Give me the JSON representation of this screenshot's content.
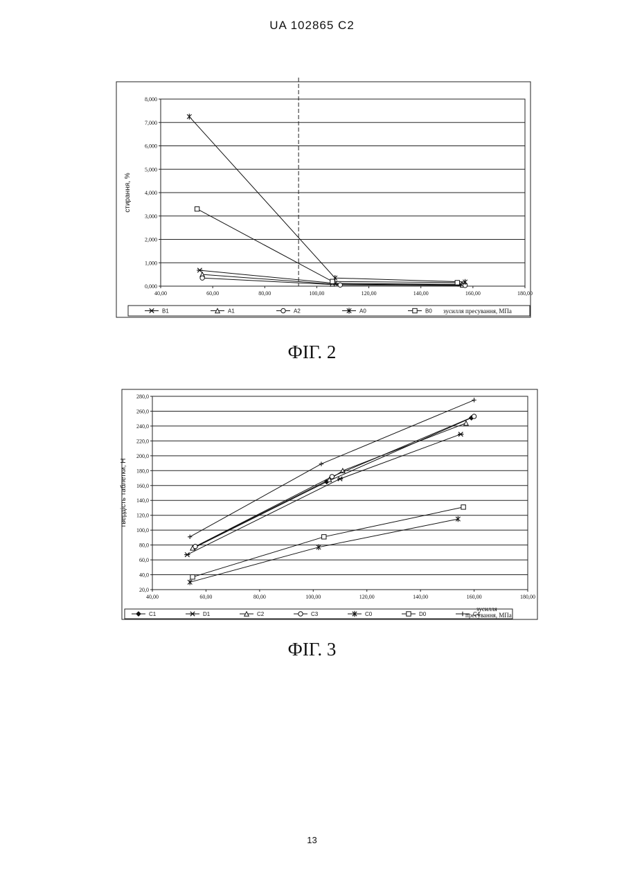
{
  "header": "UA   102865   C2",
  "page_number": "13",
  "chart_data": [
    {
      "type": "line",
      "figure_label": "ФІГ. 2",
      "xlabel": "зусилля пресування, МПа",
      "ylabel": "стирання, %",
      "xlim": [
        40,
        180
      ],
      "ylim": [
        0,
        8
      ],
      "x_ticks": [
        "40,00",
        "60,00",
        "80,00",
        "100,00",
        "120,00",
        "140,00",
        "160,00",
        "180,00"
      ],
      "y_ticks": [
        "0,000",
        "1,000",
        "2,000",
        "3,000",
        "4,000",
        "5,000",
        "6,000",
        "7,000",
        "8,000"
      ],
      "grid": true,
      "legend_position": "bottom",
      "series": [
        {
          "name": "B1",
          "marker": "x-bar",
          "x": [
            55,
            107,
            155
          ],
          "y": [
            0.68,
            0.12,
            0.08
          ]
        },
        {
          "name": "A1",
          "marker": "triangle",
          "x": [
            56,
            106,
            156
          ],
          "y": [
            0.5,
            0.09,
            0.05
          ]
        },
        {
          "name": "A2",
          "marker": "circle",
          "x": [
            56,
            109,
            157
          ],
          "y": [
            0.35,
            0.05,
            0.03
          ]
        },
        {
          "name": "A0",
          "marker": "asterisk",
          "x": [
            51,
            107,
            157
          ],
          "y": [
            7.25,
            0.35,
            0.18
          ]
        },
        {
          "name": "B0",
          "marker": "square",
          "x": [
            54,
            106,
            154
          ],
          "y": [
            3.3,
            0.2,
            0.15
          ]
        }
      ],
      "annotations": [
        {
          "type": "vertical-dashed-line",
          "x": 93
        }
      ]
    },
    {
      "type": "line",
      "figure_label": "ФІГ. 3",
      "xlabel_lines": [
        "зусилля",
        "пресування, МПа"
      ],
      "ylabel": "твердість таблетки, Н",
      "xlim": [
        40,
        180
      ],
      "ylim": [
        20,
        280
      ],
      "x_ticks": [
        "40,00",
        "60,00",
        "80,00",
        "100,00",
        "120,00",
        "140,00",
        "160,00",
        "180,00"
      ],
      "y_ticks": [
        "20,0",
        "40,0",
        "60,0",
        "80,0",
        "100,0",
        "120,0",
        "140,0",
        "160,0",
        "180,0",
        "200,0",
        "220,0",
        "240,0",
        "260,0",
        "280,0"
      ],
      "grid": true,
      "legend_position": "bottom",
      "series": [
        {
          "name": "C1",
          "marker": "diamond",
          "x": [
            56,
            105,
            159
          ],
          "y": [
            77,
            165,
            251
          ]
        },
        {
          "name": "D1",
          "marker": "x-bar",
          "x": [
            53,
            110,
            155
          ],
          "y": [
            67,
            169,
            229
          ]
        },
        {
          "name": "C2",
          "marker": "triangle",
          "x": [
            55,
            106,
            111,
            157
          ],
          "y": [
            76,
            168,
            180,
            244
          ]
        },
        {
          "name": "C3",
          "marker": "circle",
          "x": [
            56,
            107,
            160
          ],
          "y": [
            78,
            172,
            253
          ]
        },
        {
          "name": "C0",
          "marker": "asterisk",
          "x": [
            54,
            102,
            154
          ],
          "y": [
            30,
            77,
            115
          ]
        },
        {
          "name": "D0",
          "marker": "square",
          "x": [
            55,
            104,
            156
          ],
          "y": [
            37,
            91,
            131
          ]
        },
        {
          "name": "C4",
          "marker": "plus",
          "x": [
            54,
            103,
            160
          ],
          "y": [
            91,
            189,
            275
          ]
        }
      ]
    }
  ]
}
